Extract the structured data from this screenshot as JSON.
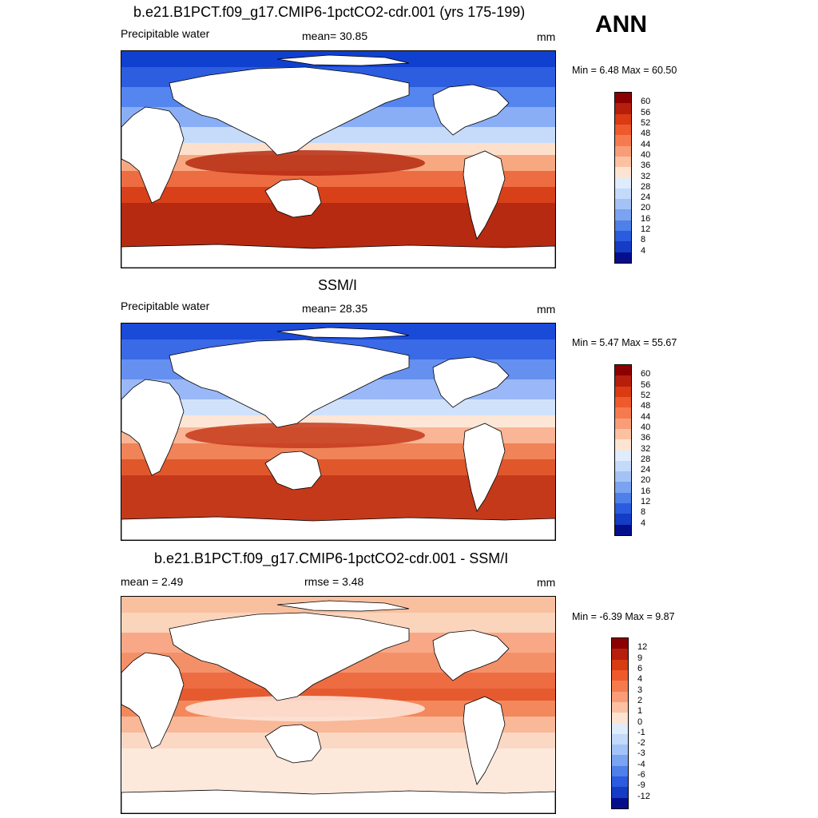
{
  "season": "ANN",
  "panels": [
    {
      "title": "b.e21.B1PCT.f09_g17.CMIP6-1pctCO2-cdr.001 (yrs 175-199)",
      "left_label": "Precipitable water",
      "center_label": "mean=  30.85",
      "units": "mm",
      "minmax": "Min =   6.48 Max =  60.50",
      "colorbar": {
        "ticks": [
          "60",
          "56",
          "52",
          "48",
          "44",
          "40",
          "36",
          "32",
          "28",
          "24",
          "20",
          "16",
          "12",
          "8",
          "4"
        ],
        "colors": [
          "#8b0000",
          "#b51f0c",
          "#d93b12",
          "#ee5a2c",
          "#f57b4e",
          "#f99d78",
          "#fcc1a2",
          "#fde4d2",
          "#dfecfb",
          "#c4dafa",
          "#a3c3f7",
          "#7aa3f0",
          "#4f7fe8",
          "#2b5bde",
          "#143cc4",
          "#050f8c"
        ]
      },
      "map": {
        "bands": [
          "#1040d0",
          "#2d5ee0",
          "#5585ee",
          "#8aaef5",
          "#c6dbfa",
          "#fce0cc",
          "#f7a880",
          "#ee6c42",
          "#d8401a",
          "#b52a10"
        ]
      }
    },
    {
      "title": "SSM/I",
      "left_label": "Precipitable water",
      "center_label": "mean=  28.35",
      "units": "mm",
      "minmax": "Min =   5.47 Max =  55.67",
      "colorbar": {
        "ticks": [
          "60",
          "56",
          "52",
          "48",
          "44",
          "40",
          "36",
          "32",
          "28",
          "24",
          "20",
          "16",
          "12",
          "8",
          "4"
        ],
        "colors": [
          "#8b0000",
          "#b51f0c",
          "#d93b12",
          "#ee5a2c",
          "#f57b4e",
          "#f99d78",
          "#fcc1a2",
          "#fde4d2",
          "#dfecfb",
          "#c4dafa",
          "#a3c3f7",
          "#7aa3f0",
          "#4f7fe8",
          "#2b5bde",
          "#143cc4",
          "#050f8c"
        ]
      },
      "map": {
        "bands": [
          "#1a4ad8",
          "#3a6ae6",
          "#6690f0",
          "#9ab8f7",
          "#d0e2fb",
          "#fde6d6",
          "#f9b595",
          "#f08358",
          "#e0572c",
          "#c4391a"
        ]
      }
    },
    {
      "title": "b.e21.B1PCT.f09_g17.CMIP6-1pctCO2-cdr.001 - SSM/I",
      "left_label": "mean =   2.49",
      "center_label": "rmse =   3.48",
      "units": "mm",
      "minmax": "Min =  -6.39 Max =   9.87",
      "colorbar": {
        "ticks": [
          "12",
          "9",
          "6",
          "4",
          "3",
          "2",
          "1",
          "0",
          "-1",
          "-2",
          "-3",
          "-4",
          "-6",
          "-9",
          "-12"
        ],
        "colors": [
          "#8b0000",
          "#b51f0c",
          "#d93b12",
          "#ee5a2c",
          "#f57b4e",
          "#f99d78",
          "#fcc1a2",
          "#fde4d2",
          "#dfecfb",
          "#c4dafa",
          "#a3c3f7",
          "#7aa3f0",
          "#4f7fe8",
          "#2b5bde",
          "#143cc4",
          "#050f8c"
        ]
      },
      "map": {
        "bands": [
          "#f9c0a0",
          "#fbd4bc",
          "#f8a886",
          "#f49068",
          "#ee6c42",
          "#e65a30",
          "#f3885c",
          "#f9b898",
          "#fbd8c4",
          "#fde8dc"
        ]
      }
    }
  ]
}
